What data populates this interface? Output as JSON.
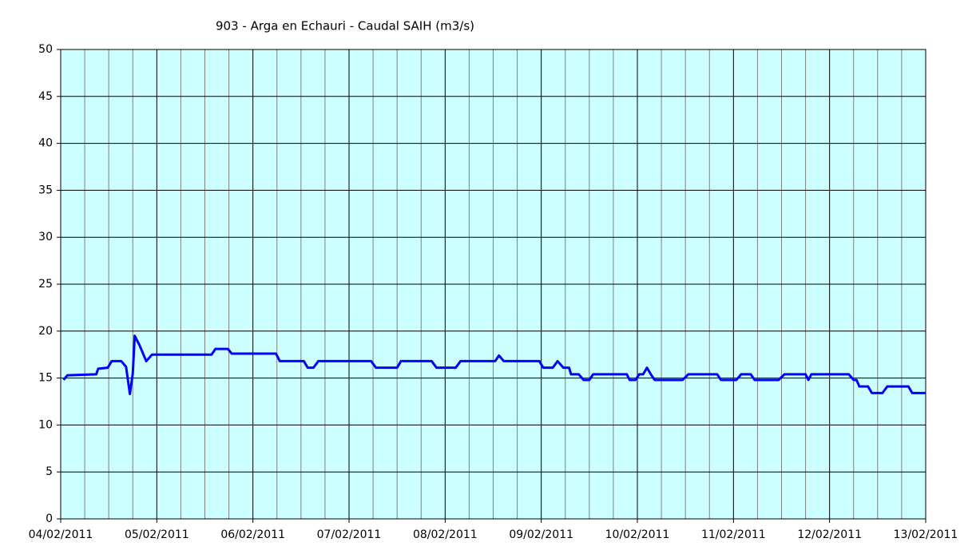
{
  "chart_data": {
    "type": "line",
    "title": "903 - Arga en Echauri - Caudal SAIH (m3/s)",
    "x": [
      0.03,
      0.07,
      0.37,
      0.39,
      0.49,
      0.53,
      0.63,
      0.68,
      0.72,
      0.75,
      0.77,
      0.82,
      0.89,
      0.95,
      1.57,
      1.61,
      1.74,
      1.78,
      2.24,
      2.28,
      2.53,
      2.57,
      2.63,
      2.68,
      3.23,
      3.28,
      3.5,
      3.54,
      3.86,
      3.91,
      4.11,
      4.16,
      4.52,
      4.56,
      4.61,
      4.98,
      5.02,
      5.12,
      5.17,
      5.23,
      5.29,
      5.31,
      5.39,
      5.44,
      5.5,
      5.54,
      5.89,
      5.92,
      5.98,
      6.02,
      6.06,
      6.1,
      6.14,
      6.18,
      6.47,
      6.53,
      6.83,
      6.87,
      7.03,
      7.08,
      7.18,
      7.22,
      7.47,
      7.53,
      7.75,
      7.78,
      7.81,
      8.2,
      8.25,
      8.28,
      8.31,
      8.4,
      8.44,
      8.55,
      8.6,
      8.82,
      8.86,
      9.0
    ],
    "series": [
      {
        "color": "#0000ff",
        "values": [
          14.8,
          15.3,
          15.4,
          16.0,
          16.1,
          16.8,
          16.8,
          16.2,
          13.3,
          15.5,
          19.5,
          18.5,
          16.8,
          17.5,
          17.5,
          18.1,
          18.1,
          17.6,
          17.6,
          16.8,
          16.8,
          16.1,
          16.1,
          16.8,
          16.8,
          16.1,
          16.1,
          16.8,
          16.8,
          16.1,
          16.1,
          16.8,
          16.8,
          17.4,
          16.8,
          16.8,
          16.1,
          16.1,
          16.8,
          16.1,
          16.1,
          15.4,
          15.4,
          14.8,
          14.8,
          15.4,
          15.4,
          14.8,
          14.8,
          15.4,
          15.4,
          16.1,
          15.4,
          14.8,
          14.8,
          15.4,
          15.4,
          14.8,
          14.8,
          15.4,
          15.4,
          14.8,
          14.8,
          15.4,
          15.4,
          14.8,
          15.4,
          15.4,
          14.8,
          14.8,
          14.1,
          14.1,
          13.4,
          13.4,
          14.1,
          14.1,
          13.4,
          13.4
        ]
      }
    ],
    "xlim": [
      0,
      9
    ],
    "xticks": [
      {
        "value": 0,
        "label": "04/02/2011"
      },
      {
        "value": 1,
        "label": "05/02/2011"
      },
      {
        "value": 2,
        "label": "06/02/2011"
      },
      {
        "value": 3,
        "label": "07/02/2011"
      },
      {
        "value": 4,
        "label": "08/02/2011"
      },
      {
        "value": 5,
        "label": "09/02/2011"
      },
      {
        "value": 6,
        "label": "10/02/2011"
      },
      {
        "value": 7,
        "label": "11/02/2011"
      },
      {
        "value": 8,
        "label": "12/02/2011"
      },
      {
        "value": 9,
        "label": "13/02/2011"
      }
    ],
    "xminorticks": [
      0.25,
      0.5,
      0.75,
      1.25,
      1.5,
      1.75,
      2.25,
      2.5,
      2.75,
      3.25,
      3.5,
      3.75,
      4.25,
      4.5,
      4.75,
      5.25,
      5.5,
      5.75,
      6.25,
      6.5,
      6.75,
      7.25,
      7.5,
      7.75,
      8.25,
      8.5,
      8.75
    ],
    "ylim": [
      0,
      50
    ],
    "yticks": [
      0,
      5,
      10,
      15,
      20,
      25,
      30,
      35,
      40,
      45,
      50
    ],
    "grid": true,
    "background": "#ccffff"
  }
}
